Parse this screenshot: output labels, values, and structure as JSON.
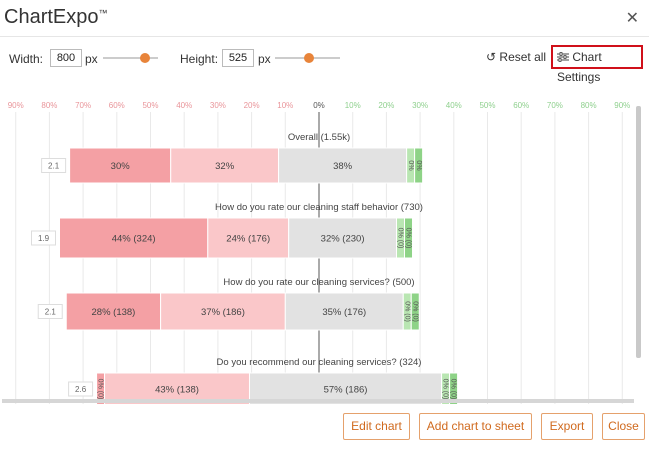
{
  "app": {
    "title": "ChartExpo",
    "tm": "™"
  },
  "toolbar": {
    "width_label": "Width:",
    "width_value": "800",
    "width_unit": "px",
    "height_label": "Height:",
    "height_value": "525",
    "height_unit": "px",
    "reset_label": "Reset all",
    "reset_icon": "↺",
    "settings_label": "Chart Settings",
    "settings_icon": "sliders-icon",
    "width_slider_level": 0.76,
    "height_slider_level": 0.52
  },
  "footer": {
    "edit": "Edit chart",
    "add": "Add chart to sheet",
    "export": "Export",
    "close": "Close"
  },
  "colors": {
    "neg_strong": "#f4a0a4",
    "neg_light": "#fac7c9",
    "neutral": "#e2e2e2",
    "pos_light": "#b9e6b2",
    "pos_strong": "#8ed387",
    "neg_axis_text": "#e9959a",
    "pos_axis_text": "#8fd08e",
    "accent_orange": "#e8843a",
    "highlight_red": "#d0101a"
  },
  "chart_data": {
    "type": "bar",
    "subtype": "diverging-stacked",
    "axis_ticks": [
      "90%",
      "80%",
      "70%",
      "60%",
      "50%",
      "40%",
      "30%",
      "20%",
      "10%",
      "0%",
      "10%",
      "20%",
      "30%",
      "40%",
      "50%",
      "60%",
      "70%",
      "80%",
      "90%"
    ],
    "axis_values": [
      -90,
      -80,
      -70,
      -60,
      -50,
      -40,
      -30,
      -20,
      -10,
      0,
      10,
      20,
      30,
      40,
      50,
      60,
      70,
      80,
      90
    ],
    "rows": [
      {
        "label": "Overall (1.55k)",
        "score": "2.1",
        "segments": [
          {
            "value": 30,
            "text": "30%",
            "tone": "neg_strong"
          },
          {
            "value": 32,
            "text": "32%",
            "tone": "neg_light"
          },
          {
            "value": 38,
            "text": "38%",
            "tone": "neutral"
          },
          {
            "value": 0,
            "text": "0%",
            "tone": "pos_light"
          },
          {
            "value": 0,
            "text": "0%",
            "tone": "pos_strong"
          }
        ]
      },
      {
        "label": "How do you rate our cleaning staff behavior (730)",
        "score": "1.9",
        "segments": [
          {
            "value": 44,
            "text": "44% (324)",
            "tone": "neg_strong"
          },
          {
            "value": 24,
            "text": "24% (176)",
            "tone": "neg_light"
          },
          {
            "value": 32,
            "text": "32% (230)",
            "tone": "neutral"
          },
          {
            "value": 0,
            "text": "0% (0)",
            "tone": "pos_light"
          },
          {
            "value": 0,
            "text": "0% (0)",
            "tone": "pos_strong"
          }
        ]
      },
      {
        "label": "How do you rate our cleaning services? (500)",
        "score": "2.1",
        "segments": [
          {
            "value": 28,
            "text": "28% (138)",
            "tone": "neg_strong"
          },
          {
            "value": 37,
            "text": "37% (186)",
            "tone": "neg_light"
          },
          {
            "value": 35,
            "text": "35% (176)",
            "tone": "neutral"
          },
          {
            "value": 0,
            "text": "0% (0)",
            "tone": "pos_light"
          },
          {
            "value": 0,
            "text": "0% (0)",
            "tone": "pos_strong"
          }
        ]
      },
      {
        "label": "Do you recommend our cleaning services? (324)",
        "score": "2.6",
        "segments": [
          {
            "value": 0,
            "text": "0% (0)",
            "tone": "neg_strong"
          },
          {
            "value": 43,
            "text": "43% (138)",
            "tone": "neg_light"
          },
          {
            "value": 57,
            "text": "57% (186)",
            "tone": "neutral"
          },
          {
            "value": 0,
            "text": "0% (0)",
            "tone": "pos_light"
          },
          {
            "value": 0,
            "text": "0% (0)",
            "tone": "pos_strong"
          }
        ]
      }
    ]
  }
}
